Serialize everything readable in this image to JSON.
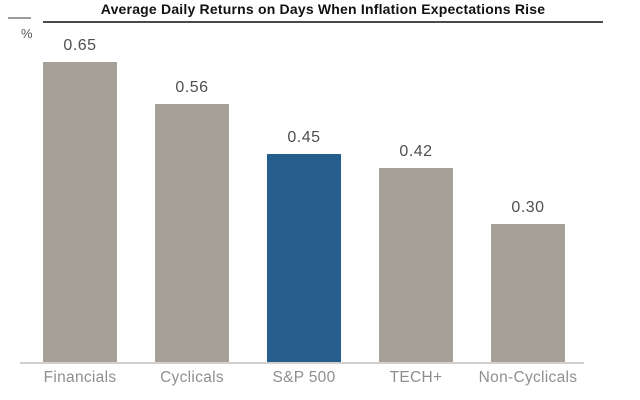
{
  "page": {
    "background": "#ffffff"
  },
  "chart_data": {
    "type": "bar",
    "title": "Average Daily Returns on Days When Inflation Expectations Rise",
    "unit": "%",
    "categories": [
      "Financials",
      "Cyclicals",
      "S&P 500",
      "TECH+",
      "Non-Cyclicals"
    ],
    "values": [
      0.65,
      0.56,
      0.45,
      0.42,
      0.3
    ],
    "value_labels": [
      "0.65",
      "0.56",
      "0.45",
      "0.42",
      "0.30"
    ],
    "highlight_index": 2,
    "highlight_category": "S&P 500",
    "ylim": [
      0,
      0.65
    ],
    "grid": false,
    "legend": "none",
    "xlabel": "",
    "ylabel": "%",
    "colors": {
      "bar_default": "#a7a099",
      "bar_highlight": "#255e8c",
      "value_label": "#4f4f4f",
      "category_label": "#8f8f8f",
      "axis_line": "#d2d0cd",
      "title_rule": "#4a4a4a",
      "mini_rule": "#9a9a9a",
      "title_text": "#111111",
      "unit_text": "#555555"
    }
  }
}
